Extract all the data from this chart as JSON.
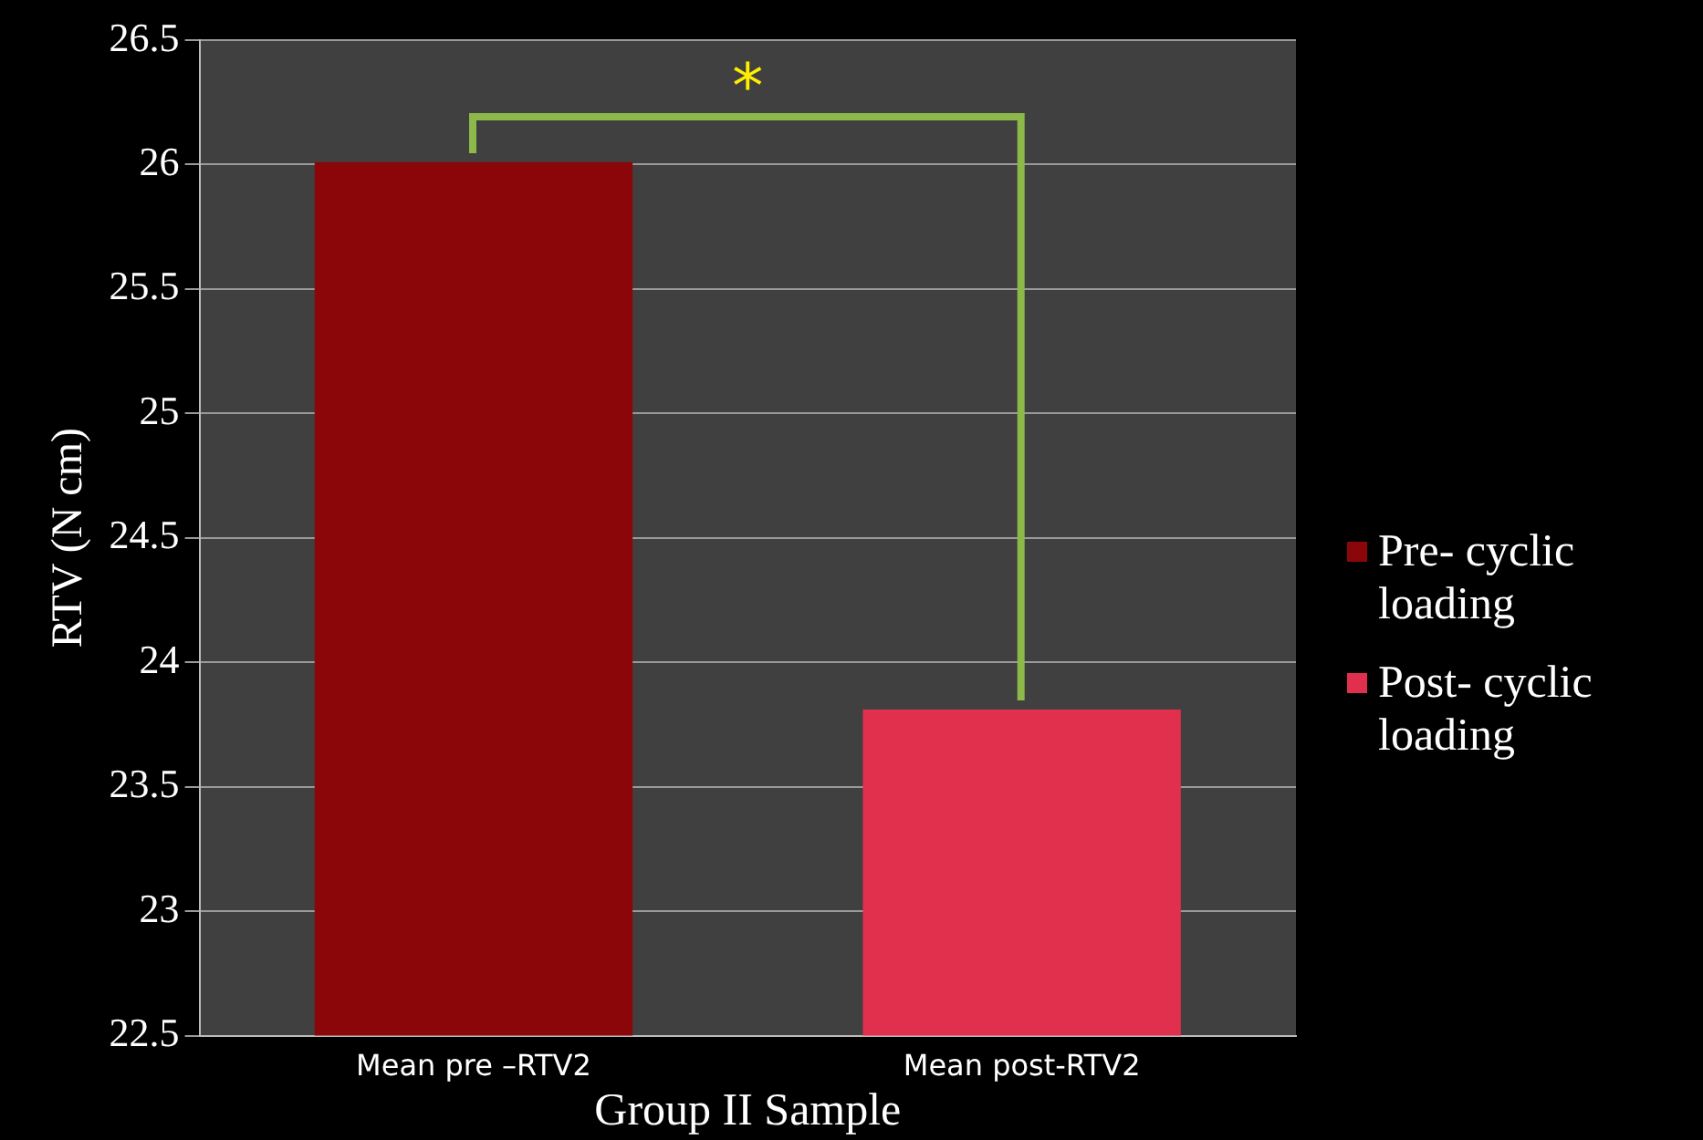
{
  "chart_data": {
    "type": "bar",
    "xlabel": "Group II Sample",
    "ylabel": "RTV (N cm)",
    "categories": [
      "Mean pre –RTV2",
      "Mean post-RTV2"
    ],
    "series": [
      {
        "name": "Pre- cyclic loading",
        "color": "#8b0608",
        "values": [
          26.01,
          null
        ]
      },
      {
        "name": "Post- cyclic loading",
        "color": "#e0304e",
        "values": [
          null,
          23.81
        ]
      }
    ],
    "ylim": [
      22.5,
      26.5
    ],
    "yticks": [
      22.5,
      23,
      23.5,
      24,
      24.5,
      25,
      25.5,
      26,
      26.5
    ],
    "grid": "y",
    "legend": "right",
    "annotations": [
      "*"
    ]
  }
}
